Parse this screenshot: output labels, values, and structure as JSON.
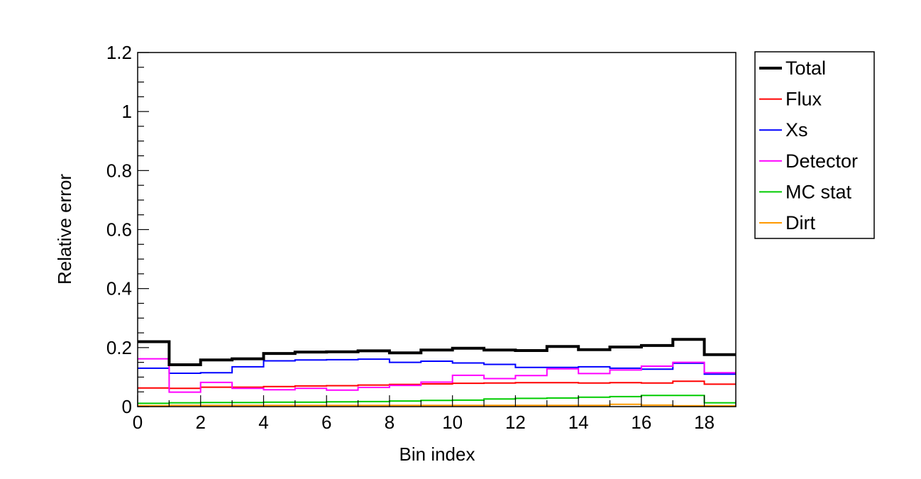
{
  "chart_data": {
    "type": "line",
    "step": true,
    "xlabel": "Bin index",
    "ylabel": "Relative error",
    "xlim": [
      0,
      19
    ],
    "ylim": [
      0,
      1.2
    ],
    "x_ticks": [
      0,
      2,
      4,
      6,
      8,
      10,
      12,
      14,
      16,
      18
    ],
    "x_tick_labels": [
      "0",
      "2",
      "4",
      "6",
      "8",
      "10",
      "12",
      "14",
      "16",
      "18"
    ],
    "y_ticks": [
      0,
      0.2,
      0.4,
      0.6,
      0.8,
      1,
      1.2
    ],
    "y_tick_labels": [
      "0",
      "0.2",
      "0.4",
      "0.6",
      "0.8",
      "1",
      "1.2"
    ],
    "grid": false,
    "legend_position": "right",
    "bin_edges": [
      0,
      1,
      2,
      3,
      4,
      5,
      6,
      7,
      8,
      9,
      10,
      11,
      12,
      13,
      14,
      15,
      16,
      17,
      18,
      19
    ],
    "series": [
      {
        "name": "Total",
        "color": "#000000",
        "width": 4,
        "values": [
          0.22,
          0.142,
          0.158,
          0.162,
          0.18,
          0.185,
          0.186,
          0.189,
          0.182,
          0.192,
          0.198,
          0.192,
          0.19,
          0.204,
          0.193,
          0.202,
          0.207,
          0.228,
          0.176
        ]
      },
      {
        "name": "Flux",
        "color": "#ff0000",
        "width": 2,
        "values": [
          0.063,
          0.062,
          0.066,
          0.066,
          0.068,
          0.07,
          0.071,
          0.073,
          0.075,
          0.077,
          0.079,
          0.08,
          0.081,
          0.081,
          0.08,
          0.081,
          0.08,
          0.086,
          0.076
        ]
      },
      {
        "name": "Xs",
        "color": "#0000ff",
        "width": 2,
        "values": [
          0.13,
          0.113,
          0.115,
          0.135,
          0.155,
          0.158,
          0.159,
          0.161,
          0.15,
          0.154,
          0.148,
          0.143,
          0.133,
          0.133,
          0.135,
          0.13,
          0.127,
          0.147,
          0.11
        ]
      },
      {
        "name": "Detector",
        "color": "#ff00ff",
        "width": 2,
        "values": [
          0.162,
          0.049,
          0.082,
          0.062,
          0.057,
          0.062,
          0.056,
          0.065,
          0.072,
          0.083,
          0.106,
          0.095,
          0.105,
          0.128,
          0.112,
          0.124,
          0.137,
          0.15,
          0.115
        ]
      },
      {
        "name": "MC stat",
        "color": "#00cc00",
        "width": 2,
        "values": [
          0.011,
          0.013,
          0.014,
          0.014,
          0.015,
          0.015,
          0.016,
          0.017,
          0.019,
          0.021,
          0.022,
          0.026,
          0.028,
          0.029,
          0.032,
          0.034,
          0.038,
          0.038,
          0.013
        ]
      },
      {
        "name": "Dirt",
        "color": "#ff9900",
        "width": 2,
        "values": [
          0.003,
          0.004,
          0.004,
          0.004,
          0.004,
          0.004,
          0.004,
          0.004,
          0.004,
          0.004,
          0.004,
          0.004,
          0.004,
          0.004,
          0.004,
          0.008,
          0.005,
          0.003,
          0.003
        ]
      }
    ]
  }
}
